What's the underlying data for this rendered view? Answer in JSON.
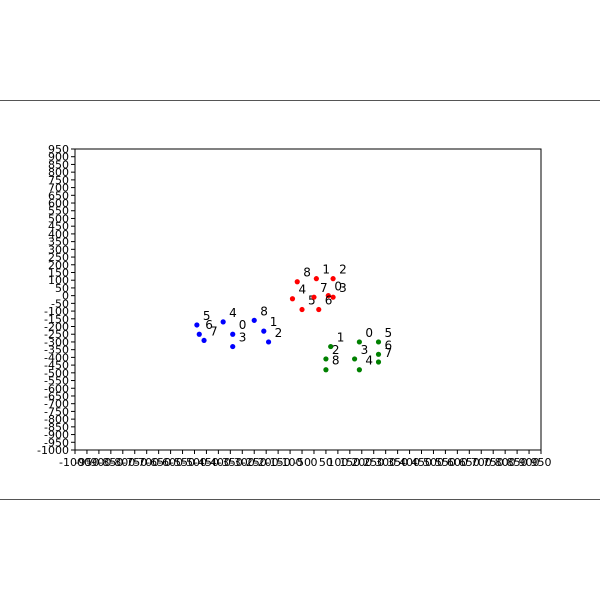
{
  "chart_data": {
    "type": "scatter",
    "title": "",
    "xlabel": "",
    "ylabel": "",
    "xlim": [
      -1000,
      950
    ],
    "ylim": [
      -1000,
      950
    ],
    "grid": false,
    "legend": "none",
    "x_ticks": [
      -1000,
      -950,
      -900,
      -850,
      -800,
      -750,
      -700,
      -650,
      -600,
      -550,
      -500,
      -450,
      -400,
      -350,
      -300,
      -250,
      -200,
      -150,
      -100,
      -50,
      0,
      50,
      100,
      150,
      200,
      250,
      300,
      350,
      400,
      450,
      500,
      550,
      600,
      650,
      700,
      750,
      800,
      850,
      900,
      950
    ],
    "y_ticks": [
      -1000,
      -950,
      -900,
      -850,
      -800,
      -750,
      -700,
      -650,
      -600,
      -550,
      -500,
      -450,
      -400,
      -350,
      -300,
      -250,
      -200,
      -150,
      -100,
      -50,
      0,
      50,
      100,
      150,
      200,
      250,
      300,
      350,
      400,
      450,
      500,
      550,
      600,
      650,
      700,
      750,
      800,
      850,
      900,
      950
    ],
    "series": [
      {
        "color": "#ff0000",
        "points": [
          {
            "label": "0",
            "x": 60,
            "y": 0
          },
          {
            "label": "1",
            "x": 10,
            "y": 110
          },
          {
            "label": "2",
            "x": 80,
            "y": 110
          },
          {
            "label": "3",
            "x": 80,
            "y": -10
          },
          {
            "label": "4",
            "x": -90,
            "y": -20
          },
          {
            "label": "5",
            "x": -50,
            "y": -90
          },
          {
            "label": "6",
            "x": 20,
            "y": -90
          },
          {
            "label": "7",
            "x": 0,
            "y": -10
          },
          {
            "label": "8",
            "x": -70,
            "y": 90
          }
        ]
      },
      {
        "color": "#0000ff",
        "points": [
          {
            "label": "0",
            "x": -340,
            "y": -250
          },
          {
            "label": "1",
            "x": -210,
            "y": -230
          },
          {
            "label": "2",
            "x": -190,
            "y": -300
          },
          {
            "label": "3",
            "x": -340,
            "y": -330
          },
          {
            "label": "4",
            "x": -380,
            "y": -170
          },
          {
            "label": "5",
            "x": -490,
            "y": -190
          },
          {
            "label": "6",
            "x": -480,
            "y": -250
          },
          {
            "label": "7",
            "x": -460,
            "y": -290
          },
          {
            "label": "8",
            "x": -250,
            "y": -160
          }
        ]
      },
      {
        "color": "#008000",
        "points": [
          {
            "label": "0",
            "x": 190,
            "y": -300
          },
          {
            "label": "1",
            "x": 70,
            "y": -330
          },
          {
            "label": "2",
            "x": 50,
            "y": -410
          },
          {
            "label": "3",
            "x": 170,
            "y": -410
          },
          {
            "label": "4",
            "x": 190,
            "y": -480
          },
          {
            "label": "5",
            "x": 270,
            "y": -300
          },
          {
            "label": "6",
            "x": 270,
            "y": -380
          },
          {
            "label": "7",
            "x": 270,
            "y": -430
          },
          {
            "label": "8",
            "x": 50,
            "y": -480
          }
        ]
      }
    ]
  }
}
